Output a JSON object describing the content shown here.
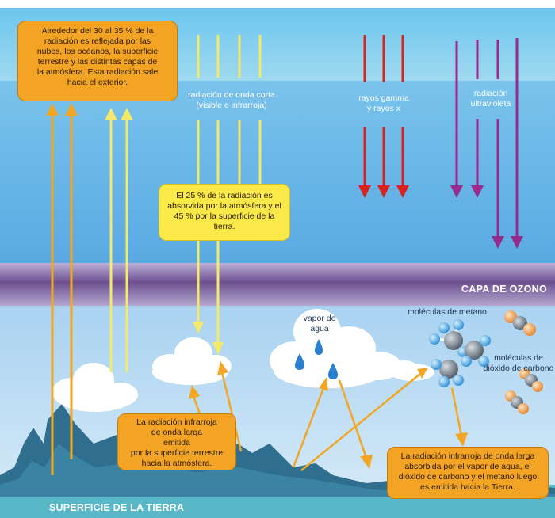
{
  "texts": {
    "reflected_box": "Alrededor del 30 al 35 % de la\nradiación es reflejada por las\nnubes, los océanos, la superficie\nterrestre y las distintas capas de\nla atmósfera. Esta radiación sale\nhacia el exterior.",
    "shortwave_label": "radiación de onda corta\n(visible e infrarroja)",
    "gamma_label": "rayos gamma\ny rayos x",
    "uv_label": "radiación\nultravioleta",
    "absorbed_box": "El 25 % de la radiación es\nabsorvida por la atmósfera y el\n45 % por la superficie de la\ntierra.",
    "ozone_label": "CAPA DE OZONO",
    "water_vapor_label": "vapor de\nagua",
    "methane_label": "moléculas de metano",
    "co2_label": "moléculas de\ndióxido de carbono",
    "infrared_emitted_box": "La radiación infrarroja\nde onda larga\nemitida\npor la superficie terrestre\nhacia la atmósfera.",
    "infrared_absorbed_box": "La radiación infrarroja de onda larga\nabsorbida por el vapor de agua, el\ndióxido de carbono y el metano luego\nes emitida hacia la Tierra.",
    "surface_label": "SUPERFICIE DE LA TIERRA"
  },
  "colors": {
    "sky_top": "#7fd0f2",
    "sky_band": "#9fdcee",
    "sky_mid": "#62b4e6",
    "sky_low": "#8ec6ec",
    "ozone_band": "#7d5a94",
    "lower_atmosphere": "#c4dff3",
    "land": "#2f6a8a",
    "ground": "#58b8c8",
    "orange_arrow": "#f2a623",
    "yellow_arrow": "#f3ea6a",
    "red_arrow": "#d8231f",
    "uv_arrow": "#9a2b8e",
    "orange_box": "#f4a425",
    "yellow_box": "#fbe94a"
  },
  "icons": {
    "cloud": "cloud-icon",
    "water_drop": "water-drop-icon",
    "methane_molecule": "methane-molecule-icon",
    "co2_molecule": "co2-molecule-icon"
  }
}
